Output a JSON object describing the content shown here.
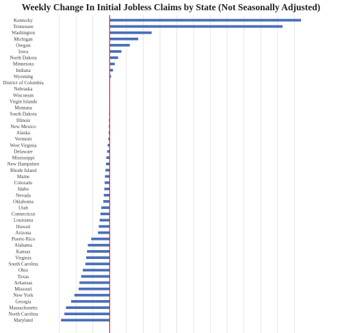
{
  "chart_data": {
    "type": "bar",
    "orientation": "horizontal",
    "title": "Weekly Change In Initial Jobless Claims by State (Not Seasonally Adjusted)",
    "xlabel": "",
    "ylabel": "",
    "grid": true,
    "legend": "none",
    "bar_color": "#4a6fb8",
    "zero_line_color": "#e02020",
    "gridline_step": 1000,
    "xlim": [
      -3600,
      11600
    ],
    "categories": [
      "Kentucky",
      "Tennessee",
      "Washington",
      "Michigan",
      "Oregon",
      "Iowa",
      "North Dakota",
      "Minnesota",
      "Indiana",
      "Wyoming",
      "District of Columbia",
      "Nebraska",
      "Wisconsin",
      "Virgin Islands",
      "Montana",
      "South Dakota",
      "Illinois",
      "New Mexico",
      "Alaska",
      "Vermont",
      "West Virginia",
      "Delaware",
      "Mississippi",
      "New Hampshire",
      "Rhode Island",
      "Maine",
      "Colorado",
      "Idaho",
      "Nevada",
      "Oklahoma",
      "Utah",
      "Connecticut",
      "Louisiana",
      "Hawaii",
      "Arizona",
      "Puerto Rico",
      "Alabama",
      "Kansas",
      "Virginia",
      "South Carolina",
      "Ohio",
      "Texas",
      "Arkansas",
      "Missouri",
      "New York",
      "Georgia",
      "Massachusetts",
      "North Carolina",
      "Maryland"
    ],
    "values": [
      11400,
      10300,
      2500,
      1700,
      1200,
      700,
      500,
      300,
      200,
      80,
      30,
      20,
      10,
      0,
      -20,
      -30,
      -40,
      -50,
      -60,
      -80,
      -120,
      -150,
      -200,
      -220,
      -250,
      -280,
      -300,
      -320,
      -350,
      -380,
      -500,
      -550,
      -600,
      -650,
      -700,
      -1100,
      -1300,
      -1350,
      -1400,
      -1450,
      -1600,
      -1700,
      -1800,
      -1850,
      -2100,
      -2300,
      -2600,
      -2700,
      -2900
    ]
  }
}
